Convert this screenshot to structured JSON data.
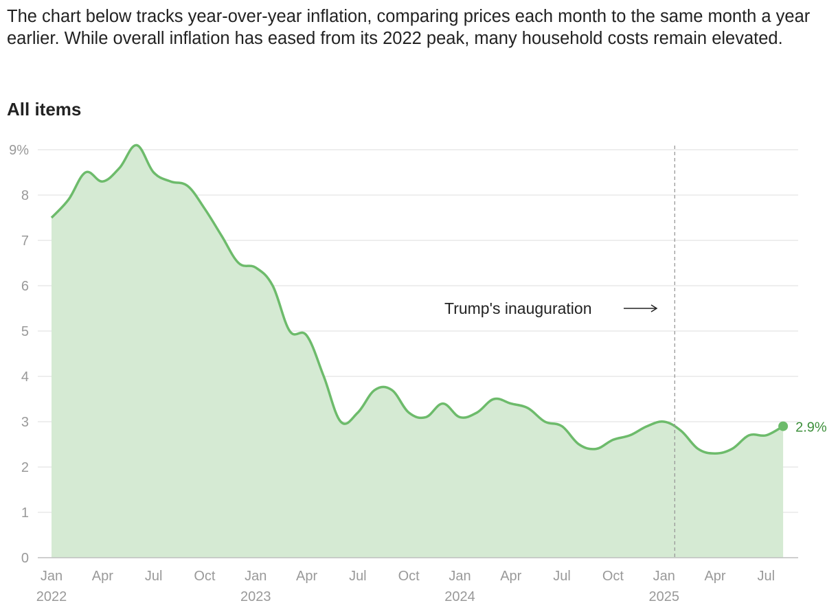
{
  "intro": "The chart below tracks year-over-year inflation, comparing prices each month to the same month a year earlier. While overall inflation has eased from its 2022 peak, many household costs remain elevated.",
  "chart_data": {
    "type": "area",
    "title": "All items",
    "xlabel": "",
    "ylabel": "",
    "ylim": [
      0,
      9
    ],
    "y_ticks": [
      "0",
      "1",
      "2",
      "3",
      "4",
      "5",
      "6",
      "7",
      "8",
      "9%"
    ],
    "x_ticks": [
      {
        "month": "Jan",
        "year": "2022"
      },
      {
        "month": "Apr",
        "year": ""
      },
      {
        "month": "Jul",
        "year": ""
      },
      {
        "month": "Oct",
        "year": ""
      },
      {
        "month": "Jan",
        "year": "2023"
      },
      {
        "month": "Apr",
        "year": ""
      },
      {
        "month": "Jul",
        "year": ""
      },
      {
        "month": "Oct",
        "year": ""
      },
      {
        "month": "Jan",
        "year": "2024"
      },
      {
        "month": "Apr",
        "year": ""
      },
      {
        "month": "Jul",
        "year": ""
      },
      {
        "month": "Oct",
        "year": ""
      },
      {
        "month": "Jan",
        "year": "2025"
      },
      {
        "month": "Apr",
        "year": ""
      },
      {
        "month": "Jul",
        "year": ""
      }
    ],
    "grid": true,
    "series": [
      {
        "x_start": "2022-01",
        "x_end": "2025-08",
        "values": [
          7.5,
          7.9,
          8.5,
          8.3,
          8.6,
          9.1,
          8.5,
          8.3,
          8.2,
          7.7,
          7.1,
          6.5,
          6.4,
          6.0,
          5.0,
          4.9,
          4.0,
          3.0,
          3.2,
          3.7,
          3.7,
          3.2,
          3.1,
          3.4,
          3.1,
          3.2,
          3.5,
          3.4,
          3.3,
          3.0,
          2.9,
          2.5,
          2.4,
          2.6,
          2.7,
          2.9,
          3.0,
          2.8,
          2.4,
          2.3,
          2.4,
          2.7,
          2.7,
          2.9
        ]
      }
    ],
    "end_label": "2.9%",
    "annotation": {
      "text": "Trump's inauguration",
      "date": "2025-01-20"
    },
    "colors": {
      "line": "#6dbb6b",
      "fill": "#d5ead3",
      "label": "#3d8f3b",
      "grid": "#e3e3e3",
      "marker_line": "#999999"
    }
  }
}
